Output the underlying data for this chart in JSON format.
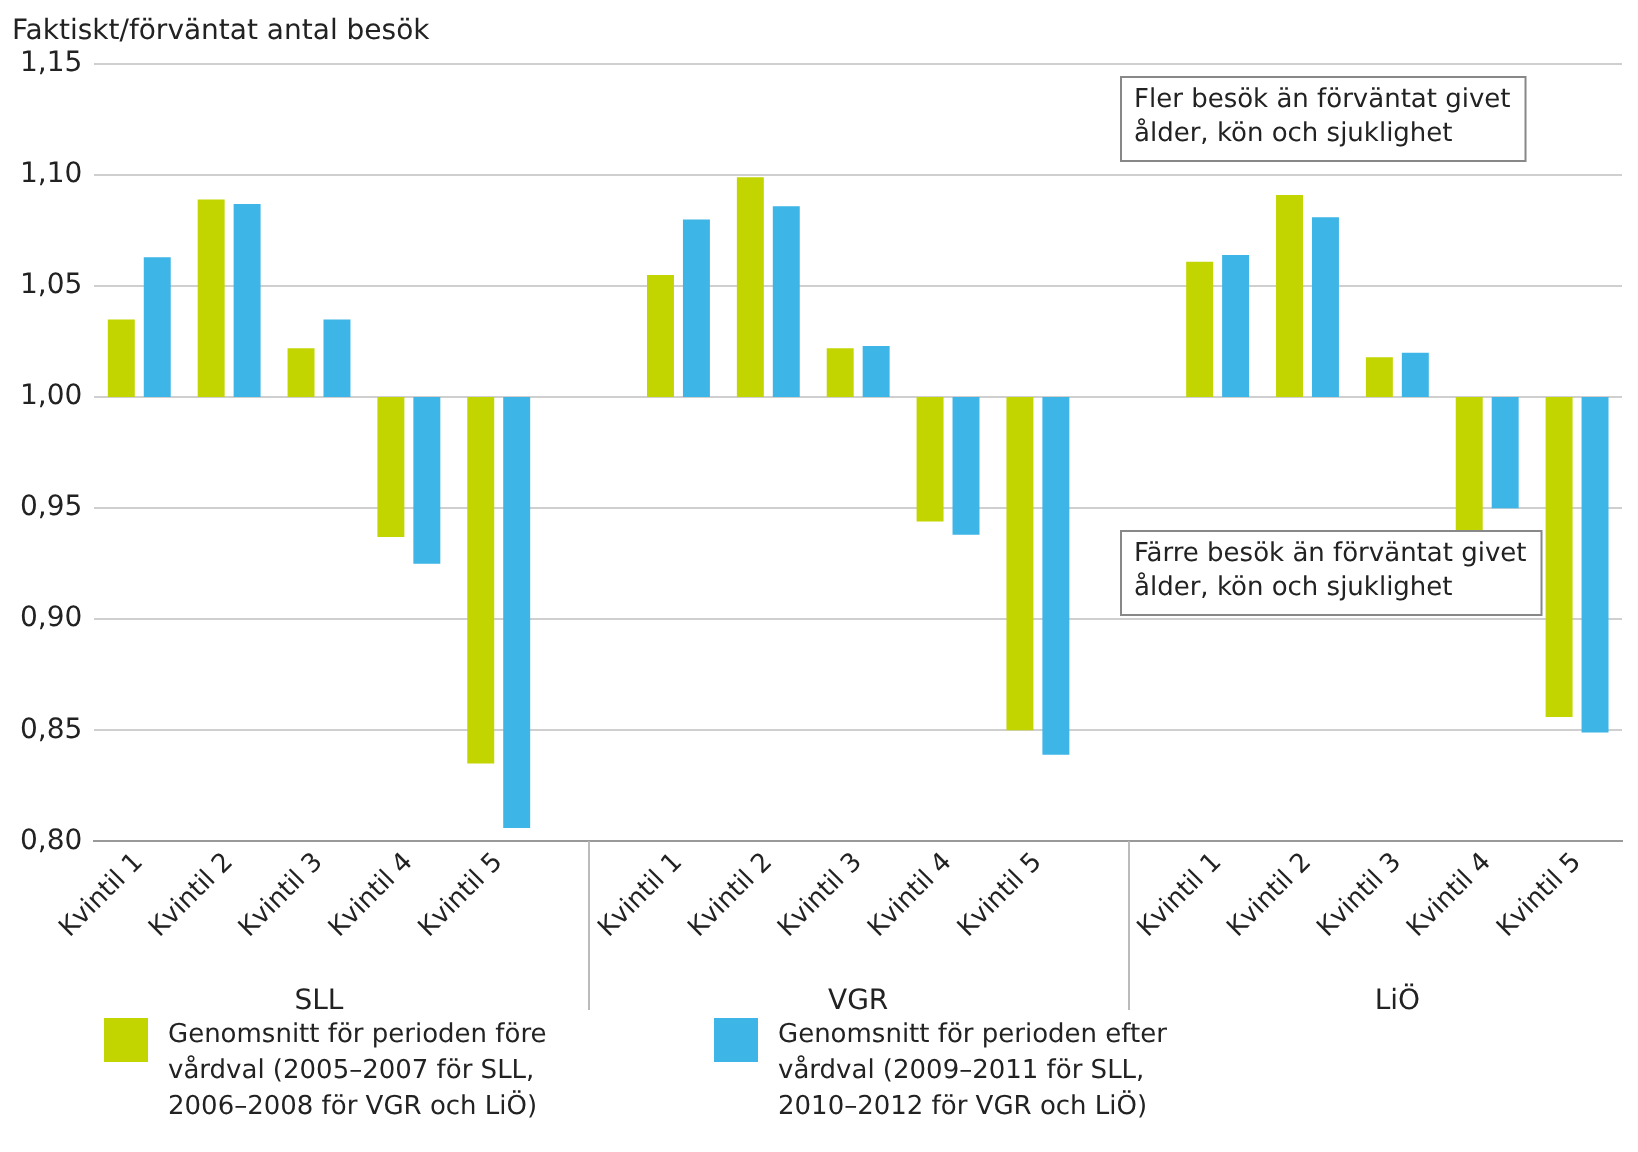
{
  "chart_data": {
    "type": "bar",
    "ylabel": "Faktiskt/förväntat antal besök",
    "categories": [
      "Kvintil 1",
      "Kvintil 2",
      "Kvintil 3",
      "Kvintil 4",
      "Kvintil 5",
      null,
      "Kvintil 1",
      "Kvintil 2",
      "Kvintil 3",
      "Kvintil 4",
      "Kvintil 5",
      null,
      "Kvintil 1",
      "Kvintil 2",
      "Kvintil 3",
      "Kvintil 4",
      "Kvintil 5"
    ],
    "series": [
      {
        "name": "Genomsnitt för perioden före vårdval (2005–2007 för SLL, 2006–2008 för VGR och LiÖ)",
        "color": "#c3d500",
        "base": [
          1,
          1,
          1,
          1,
          1,
          null,
          1,
          1,
          1,
          1,
          1,
          null,
          1,
          1,
          1,
          1,
          1
        ],
        "values": [
          0.035,
          0.089,
          0.022,
          -0.063,
          -0.165,
          null,
          0.055,
          0.099,
          0.022,
          -0.056,
          -0.15,
          null,
          0.061,
          0.091,
          0.018,
          -0.06,
          -0.144
        ]
      },
      {
        "name": "Genomsnitt för perioden efter vårdval (2009–2011 för SLL, 2010–2012 för VGR och LiÖ)",
        "color": "#3db5e6",
        "base": [
          1,
          1,
          1,
          1,
          1,
          null,
          1,
          1,
          1,
          1,
          1,
          null,
          1,
          1,
          1,
          1,
          1
        ],
        "values": [
          0.063,
          0.087,
          0.035,
          -0.075,
          -0.194,
          null,
          0.08,
          0.086,
          0.023,
          -0.062,
          -0.161,
          null,
          0.064,
          0.081,
          0.02,
          -0.05,
          -0.151
        ]
      }
    ],
    "ylim": [
      0.8,
      1.15
    ],
    "yticks": [
      {
        "value": 0.8,
        "label": "0,80"
      },
      {
        "value": 0.85,
        "label": "0,85"
      },
      {
        "value": 0.9,
        "label": "0,90"
      },
      {
        "value": 0.95,
        "label": "0,95"
      },
      {
        "value": 1,
        "label": "1,00"
      },
      {
        "value": 1.05,
        "label": "1,05"
      },
      {
        "value": 1.1,
        "label": "1,10"
      },
      {
        "value": 1.15,
        "label": "1,15"
      }
    ],
    "grid": "y",
    "legend": "bottom",
    "annotations": [
      "SLL",
      "VGR",
      "LiÖ",
      "Fler besök än förväntat givet ålder, kön och sjuklighet",
      "Färre besök än förväntat givet ålder, kön och sjuklighet"
    ]
  }
}
